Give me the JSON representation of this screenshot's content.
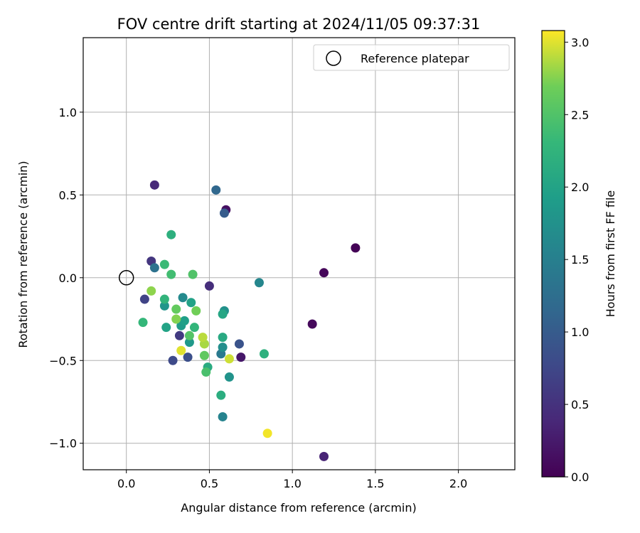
{
  "chart_data": {
    "type": "scatter",
    "title": "FOV centre drift starting at 2024/11/05 09:37:31",
    "xlabel": "Angular distance from reference (arcmin)",
    "ylabel": "Rotation from reference (arcmin)",
    "xlim": [
      -0.26,
      2.34
    ],
    "ylim": [
      -1.16,
      1.45
    ],
    "xticks": [
      0.0,
      0.5,
      1.0,
      1.5,
      2.0
    ],
    "xtick_labels": [
      "0.0",
      "0.5",
      "1.0",
      "1.5",
      "2.0"
    ],
    "yticks": [
      -1.0,
      -0.5,
      0.0,
      0.5,
      1.0
    ],
    "ytick_labels": [
      "−1.0",
      "−0.5",
      "0.0",
      "0.5",
      "1.0"
    ],
    "grid": true,
    "legend": {
      "placement": "top-right",
      "entries": [
        "Reference platepar"
      ]
    },
    "reference": {
      "x": 0.0,
      "y": 0.0,
      "label": "Reference platepar"
    },
    "colorbar": {
      "label": "Hours from first FF file",
      "colormap": "viridis",
      "range": [
        0.0,
        3.08
      ],
      "ticks": [
        0.0,
        0.5,
        1.0,
        1.5,
        2.0,
        2.5,
        3.0
      ],
      "tick_labels": [
        "0.0",
        "0.5",
        "1.0",
        "1.5",
        "2.0",
        "2.5",
        "3.0"
      ]
    },
    "points": [
      {
        "x": 1.38,
        "y": 0.18,
        "c": 0.02
      },
      {
        "x": 1.19,
        "y": 0.03,
        "c": 0.05
      },
      {
        "x": 1.12,
        "y": -0.28,
        "c": 0.08
      },
      {
        "x": 0.6,
        "y": 0.41,
        "c": 0.15
      },
      {
        "x": 0.69,
        "y": -0.48,
        "c": 0.22
      },
      {
        "x": 1.19,
        "y": -1.08,
        "c": 0.35
      },
      {
        "x": 0.17,
        "y": 0.56,
        "c": 0.4
      },
      {
        "x": 0.5,
        "y": -0.05,
        "c": 0.45
      },
      {
        "x": 0.15,
        "y": 0.1,
        "c": 0.55
      },
      {
        "x": 0.32,
        "y": -0.35,
        "c": 0.6
      },
      {
        "x": 0.11,
        "y": -0.13,
        "c": 0.7
      },
      {
        "x": 0.28,
        "y": -0.5,
        "c": 0.78
      },
      {
        "x": 0.37,
        "y": -0.48,
        "c": 0.85
      },
      {
        "x": 0.68,
        "y": -0.4,
        "c": 0.9
      },
      {
        "x": 0.59,
        "y": 0.39,
        "c": 1.0
      },
      {
        "x": 0.54,
        "y": 0.53,
        "c": 1.15
      },
      {
        "x": 0.17,
        "y": 0.06,
        "c": 1.3
      },
      {
        "x": 0.57,
        "y": -0.46,
        "c": 1.4
      },
      {
        "x": 0.58,
        "y": -0.84,
        "c": 1.55
      },
      {
        "x": 0.8,
        "y": -0.03,
        "c": 1.6
      },
      {
        "x": 0.34,
        "y": -0.12,
        "c": 1.65
      },
      {
        "x": 0.58,
        "y": -0.42,
        "c": 1.7
      },
      {
        "x": 0.59,
        "y": -0.2,
        "c": 1.75
      },
      {
        "x": 0.62,
        "y": -0.6,
        "c": 1.78
      },
      {
        "x": 0.23,
        "y": -0.17,
        "c": 1.8
      },
      {
        "x": 0.38,
        "y": -0.39,
        "c": 1.85
      },
      {
        "x": 0.33,
        "y": -0.29,
        "c": 1.9
      },
      {
        "x": 0.35,
        "y": -0.26,
        "c": 1.95
      },
      {
        "x": 0.39,
        "y": -0.15,
        "c": 1.98
      },
      {
        "x": 0.24,
        "y": -0.3,
        "c": 2.0
      },
      {
        "x": 0.58,
        "y": -0.22,
        "c": 2.05
      },
      {
        "x": 0.58,
        "y": -0.36,
        "c": 2.1
      },
      {
        "x": 0.49,
        "y": -0.54,
        "c": 2.12
      },
      {
        "x": 0.57,
        "y": -0.71,
        "c": 2.15
      },
      {
        "x": 0.27,
        "y": 0.26,
        "c": 2.18
      },
      {
        "x": 0.83,
        "y": -0.46,
        "c": 2.2
      },
      {
        "x": 0.23,
        "y": -0.13,
        "c": 2.25
      },
      {
        "x": 0.41,
        "y": -0.3,
        "c": 2.28
      },
      {
        "x": 0.1,
        "y": -0.27,
        "c": 2.3
      },
      {
        "x": 0.23,
        "y": 0.08,
        "c": 2.35
      },
      {
        "x": 0.27,
        "y": 0.02,
        "c": 2.4
      },
      {
        "x": 0.48,
        "y": -0.57,
        "c": 2.45
      },
      {
        "x": 0.4,
        "y": 0.02,
        "c": 2.5
      },
      {
        "x": 0.38,
        "y": -0.35,
        "c": 2.52
      },
      {
        "x": 0.47,
        "y": -0.47,
        "c": 2.6
      },
      {
        "x": 0.3,
        "y": -0.19,
        "c": 2.62
      },
      {
        "x": 0.42,
        "y": -0.2,
        "c": 2.7
      },
      {
        "x": 0.3,
        "y": -0.25,
        "c": 2.75
      },
      {
        "x": 0.15,
        "y": -0.08,
        "c": 2.78
      },
      {
        "x": 0.47,
        "y": -0.4,
        "c": 2.85
      },
      {
        "x": 0.46,
        "y": -0.36,
        "c": 2.9
      },
      {
        "x": 0.62,
        "y": -0.49,
        "c": 2.95
      },
      {
        "x": 0.33,
        "y": -0.44,
        "c": 3.0
      },
      {
        "x": 0.85,
        "y": -0.94,
        "c": 3.05
      }
    ]
  }
}
